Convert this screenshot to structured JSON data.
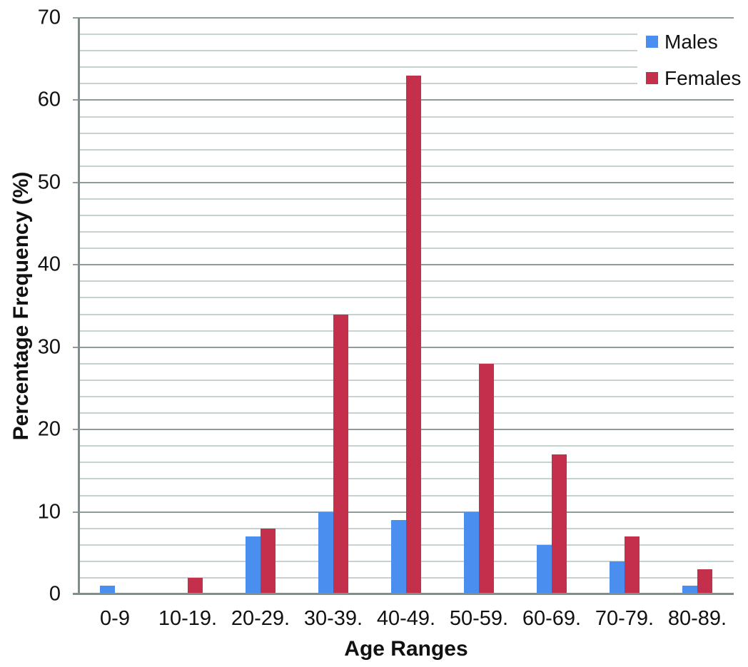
{
  "chart_data": {
    "type": "bar",
    "title": "",
    "categories": [
      "0-9",
      "10-19.",
      "20-29.",
      "30-39.",
      "40-49.",
      "50-59.",
      "60-69.",
      "70-79.",
      "80-89."
    ],
    "series": [
      {
        "name": "Males",
        "color": "#4a8ef0",
        "values": [
          1,
          0,
          7,
          10,
          9,
          10,
          6,
          4,
          1
        ]
      },
      {
        "name": "Females",
        "color": "#c4304c",
        "values": [
          0,
          2,
          8,
          34,
          63,
          28,
          17,
          7,
          3
        ]
      }
    ],
    "xlabel": "Age Ranges",
    "ylabel": "Percentage Frequency (%)",
    "ylim": [
      0,
      70
    ],
    "y_ticks": [
      "0",
      "10",
      "20",
      "30",
      "40",
      "50",
      "60",
      "70"
    ],
    "y_major_step": 10,
    "y_minor_step": 2,
    "grid": true,
    "legend_position": "top-right",
    "legend_labels": [
      "Males",
      "Females"
    ]
  },
  "colors": {
    "bar_males": "#4a8ef0",
    "bar_females": "#c4304c",
    "grid_minor": "#c7d1d1",
    "grid_major": "#8d9b9b",
    "axis": "#7e8d8d",
    "text": "#111111",
    "background": "#ffffff"
  }
}
